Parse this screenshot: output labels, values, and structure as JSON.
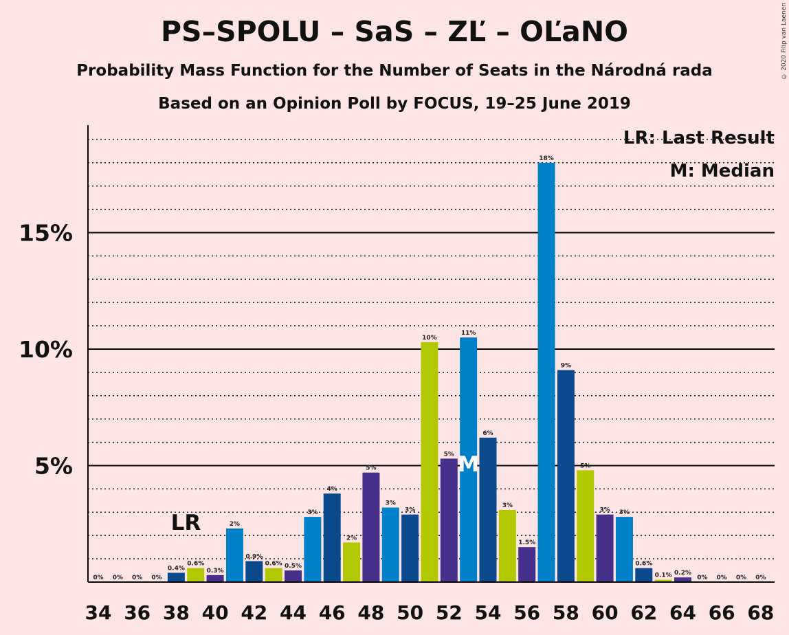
{
  "header": {
    "title": "PS–SPOLU – SaS – ZĽ – OĽaNO",
    "subtitle1": "Probability Mass Function for the Number of Seats in the Národná rada",
    "subtitle2": "Based on an Opinion Poll by FOCUS, 19–25 June 2019",
    "copyright": "© 2020 Filip van Laenen"
  },
  "legend": {
    "lr": "LR: Last Result",
    "m": "M: Median"
  },
  "markers": {
    "last_result_label": "LR",
    "last_result_seat": 38,
    "median_label": "M",
    "median_seat": 53
  },
  "colors": {
    "background": "#fde5e5",
    "blue": "#0080c8",
    "darkblue": "#0a4a8c",
    "green": "#b2c800",
    "purple": "#47308c"
  },
  "chart_data": {
    "type": "bar",
    "title": "PS–SPOLU – SaS – ZĽ – OĽaNO",
    "xlabel": "",
    "ylabel": "",
    "ylim": [
      0,
      19.6
    ],
    "yticks": [
      5,
      10,
      15
    ],
    "ytick_labels": [
      "5%",
      "10%",
      "15%"
    ],
    "x_tick_labels": [
      "34",
      "36",
      "38",
      "40",
      "42",
      "44",
      "46",
      "48",
      "50",
      "52",
      "54",
      "56",
      "58",
      "60",
      "62",
      "64",
      "66",
      "68"
    ],
    "grid": "dotted every 1%, solid at 5%, 10%, 15%",
    "categories": [
      34,
      35,
      36,
      37,
      38,
      39,
      40,
      41,
      42,
      43,
      44,
      45,
      46,
      47,
      48,
      49,
      50,
      51,
      52,
      53,
      54,
      55,
      56,
      57,
      58,
      59,
      60,
      61,
      62,
      63,
      64,
      65,
      66,
      67,
      68
    ],
    "values": [
      0,
      0,
      0,
      0,
      0.4,
      0.6,
      0.3,
      2.3,
      0.9,
      0.6,
      0.5,
      2.8,
      3.8,
      1.7,
      4.7,
      3.2,
      2.9,
      10.3,
      5.3,
      10.5,
      6.2,
      3.1,
      1.5,
      18.0,
      9.1,
      4.8,
      2.9,
      2.8,
      0.6,
      0.1,
      0.2,
      0,
      0,
      0,
      0
    ],
    "labels": [
      "0%",
      "0%",
      "0%",
      "0%",
      "0.4%",
      "0.6%",
      "0.3%",
      "2%",
      "0.9%",
      "0.6%",
      "0.5%",
      "3%",
      "4%",
      "2%",
      "5%",
      "3%",
      "3%",
      "10%",
      "5%",
      "11%",
      "6%",
      "3%",
      "1.5%",
      "18%",
      "9%",
      "5%",
      "3%",
      "3%",
      "0.6%",
      "0.1%",
      "0.2%",
      "0%",
      "0%",
      "0%",
      "0%"
    ],
    "bar_colors": [
      "blue",
      "darkblue",
      "green",
      "purple",
      "darkblue",
      "green",
      "purple",
      "blue",
      "darkblue",
      "green",
      "purple",
      "blue",
      "darkblue",
      "green",
      "purple",
      "blue",
      "darkblue",
      "green",
      "purple",
      "blue",
      "darkblue",
      "green",
      "purple",
      "blue",
      "darkblue",
      "green",
      "purple",
      "blue",
      "darkblue",
      "green",
      "purple",
      "blue",
      "darkblue",
      "green",
      "purple"
    ]
  }
}
